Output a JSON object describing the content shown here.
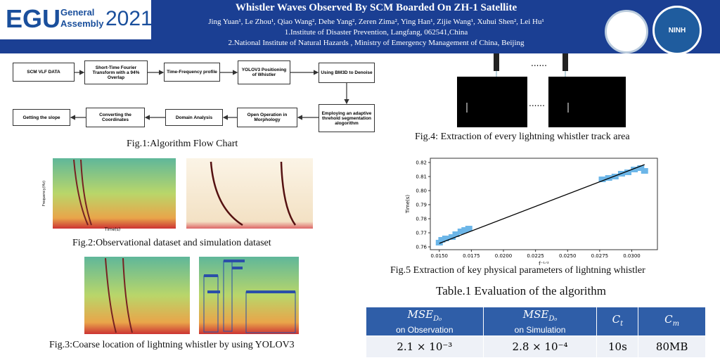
{
  "header": {
    "logo_main": "EGU",
    "logo_general": "General",
    "logo_assembly": "Assembly",
    "logo_year": "2021",
    "title": "Whistler Waves Observed By SCM Boarded On ZH-1 Satellite",
    "authors": "Jing Yuan¹, Le Zhou¹, Qiao Wang², Dehe Yang², Zeren Zima², Ying Han¹, Zijie Wang¹, Xuhui Shen², Lei Hu¹",
    "affiliation_1": "1.Institute of Disaster Prevention, Langfang, 062541,China",
    "affiliation_2": "2.National Institute of Natural Hazards , Ministry of Emergency Management of China, Beijing",
    "logo_right": "NINH"
  },
  "flowchart": {
    "nodes": [
      "SCM VLF DATA",
      "Short-Time Fourier Transform with a 94% Overlap",
      "Time-Frequency profile",
      "YOLOV3 Positioning of Whistler",
      "Using BM3D to Denoise",
      "Employing an adaptive threhold segmentation alogorithm",
      "Open Operation in Morphology",
      "Domain Analysis",
      "Converting the Coordinates",
      "Getting the slope"
    ],
    "caption": "Fig.1:Algorithm Flow Chart"
  },
  "figures": {
    "fig2_caption": "Fig.2:Observational dataset and simulation dataset",
    "fig2_xlabel": "Time(s)",
    "fig2_ylabel": "Frequency(Hz)",
    "fig3_caption": "Fig.3:Coarse location of lightning whistler by using YOLOV3",
    "fig4_dots": "......",
    "fig4_caption": "Fig.4: Extraction of every lightning whistler track area",
    "fig5_caption": "Fig.5 Extraction of key physical parameters of lightning whistler"
  },
  "chart_data": {
    "type": "scatter",
    "xlabel": "f⁻¹ᐟ²",
    "ylabel": "Time(s)",
    "series": [
      {
        "name": "whistler points",
        "color": "#6cb6e8",
        "x": [
          0.015,
          0.0152,
          0.0155,
          0.016,
          0.0163,
          0.0167,
          0.017,
          0.0173,
          0.0277,
          0.0282,
          0.0287,
          0.0292,
          0.0297,
          0.0302,
          0.0307,
          0.031
        ],
        "y": [
          0.763,
          0.765,
          0.766,
          0.767,
          0.769,
          0.771,
          0.772,
          0.773,
          0.808,
          0.809,
          0.81,
          0.812,
          0.813,
          0.815,
          0.816,
          0.814
        ]
      },
      {
        "name": "fit",
        "color": "#000000",
        "x": [
          0.015,
          0.031
        ],
        "y": [
          0.7625,
          0.8185
        ]
      }
    ],
    "xlim": [
      0.0143,
      0.032
    ],
    "ylim": [
      0.758,
      0.823
    ],
    "xticks": [
      {
        "value": 0.015,
        "label": "0.0150"
      },
      {
        "value": 0.0175,
        "label": "0.0175"
      },
      {
        "value": 0.02,
        "label": "0.0200"
      },
      {
        "value": 0.0225,
        "label": "0.0225"
      },
      {
        "value": 0.025,
        "label": "0.0250"
      },
      {
        "value": 0.0275,
        "label": "0.0275"
      },
      {
        "value": 0.03,
        "label": "0.0300"
      }
    ],
    "yticks": [
      0.76,
      0.77,
      0.78,
      0.79,
      {
        "value": 0.8,
        "label": "0.80"
      },
      0.81,
      0.82
    ]
  },
  "table": {
    "title": "Table.1 Evaluation of the algorithm",
    "headers": [
      {
        "main": "MSE",
        "sub": "D₀",
        "note": "on Observation"
      },
      {
        "main": "MSE",
        "sub": "D₀",
        "note": "on Simulation"
      },
      {
        "main": "C",
        "sub": "t"
      },
      {
        "main": "C",
        "sub": "m"
      }
    ],
    "rows": [
      [
        "2.1 × 10⁻³",
        "2.8 × 10⁻⁴",
        "10s",
        "80MB"
      ]
    ]
  }
}
